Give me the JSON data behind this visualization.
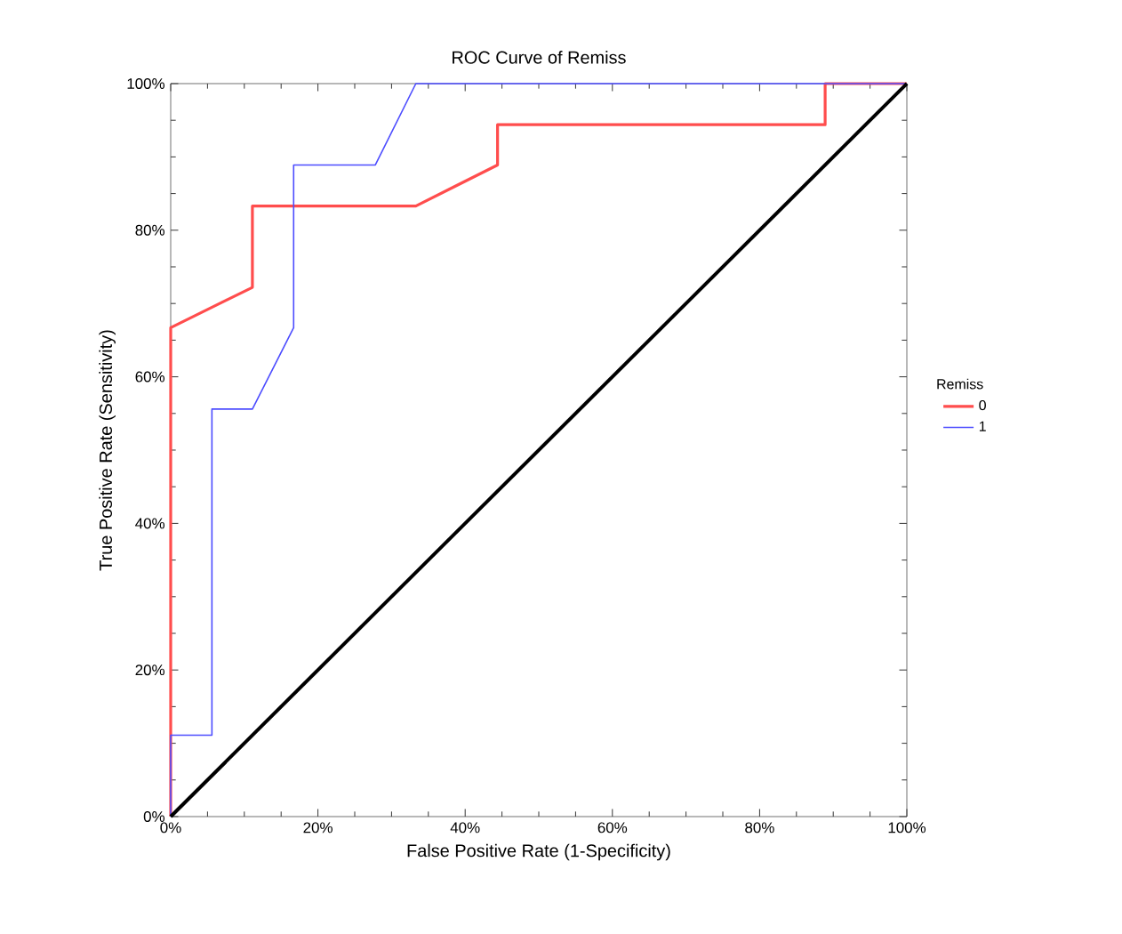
{
  "chart_data": {
    "type": "line",
    "title": "ROC Curve of Remiss",
    "xlabel": "False Positive Rate (1-Specificity)",
    "ylabel": "True Positive Rate (Sensitivity)",
    "legend_title": "Remiss",
    "legend": "right",
    "grid": false,
    "marker": "none",
    "line_style": "solid",
    "xlim": [
      0,
      100
    ],
    "ylim": [
      0,
      100
    ],
    "xticks": [
      {
        "value": 0,
        "label": "0%"
      },
      {
        "value": 20,
        "label": "20%"
      },
      {
        "value": 40,
        "label": "40%"
      },
      {
        "value": 60,
        "label": "60%"
      },
      {
        "value": 80,
        "label": "80%"
      },
      {
        "value": 100,
        "label": "100%"
      }
    ],
    "yticks": [
      {
        "value": 0,
        "label": "0%"
      },
      {
        "value": 20,
        "label": "20%"
      },
      {
        "value": 40,
        "label": "40%"
      },
      {
        "value": 60,
        "label": "60%"
      },
      {
        "value": 80,
        "label": "80%"
      },
      {
        "value": 100,
        "label": "100%"
      }
    ],
    "series": [
      {
        "name": "0",
        "color": "#ff4d4d",
        "x": [
          0,
          0,
          11.1,
          11.1,
          33.3,
          44.4,
          44.4,
          88.9,
          88.9,
          100
        ],
        "values": [
          0,
          66.7,
          72.2,
          83.3,
          83.3,
          88.9,
          94.4,
          94.4,
          100,
          100
        ]
      },
      {
        "name": "1",
        "color": "#4d4dff",
        "x": [
          0,
          0,
          5.6,
          5.6,
          11.1,
          16.7,
          16.7,
          27.8,
          33.3,
          100
        ],
        "values": [
          0,
          11.1,
          11.1,
          55.6,
          55.6,
          66.7,
          88.9,
          88.9,
          100,
          100
        ]
      },
      {
        "color": "#000000",
        "x": [
          0,
          100
        ],
        "values": [
          0,
          100
        ]
      }
    ]
  }
}
